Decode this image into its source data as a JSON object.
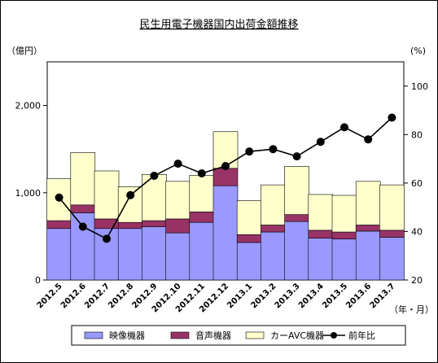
{
  "chart_data": {
    "type": "bar",
    "title": "民生用電子機器国内出荷金額推移",
    "y_left_unit": "（億円）",
    "y_right_unit": "(%)",
    "x_unit": "（年・月）",
    "ylim_left": [
      0,
      2500
    ],
    "yticks_left": [
      "0",
      "1,000",
      "2,000"
    ],
    "yticks_left_values": [
      0,
      1000,
      2000
    ],
    "ylim_right": [
      20,
      110
    ],
    "yticks_right": [
      "20",
      "40",
      "60",
      "80",
      "100"
    ],
    "yticks_right_values": [
      20,
      40,
      60,
      80,
      100
    ],
    "categories": [
      "2012.5",
      "2012.6",
      "2012.7",
      "2012.8",
      "2012.9",
      "2012.10",
      "2012.11",
      "2012.12",
      "2013.1",
      "2013.2",
      "2013.3",
      "2013.4",
      "2013.5",
      "2013.6",
      "2013.7"
    ],
    "series": [
      {
        "name": "映像機器",
        "kind": "stack",
        "color": "#9999ff",
        "values": [
          590,
          770,
          590,
          590,
          610,
          540,
          660,
          1080,
          430,
          550,
          670,
          480,
          470,
          560,
          490
        ]
      },
      {
        "name": "音声機器",
        "kind": "stack",
        "color": "#993366",
        "values": [
          90,
          90,
          110,
          70,
          70,
          160,
          120,
          200,
          90,
          80,
          80,
          90,
          80,
          70,
          80
        ]
      },
      {
        "name": "カーAVC機器",
        "kind": "stack",
        "color": "#ffffcc",
        "values": [
          480,
          600,
          550,
          410,
          530,
          430,
          420,
          420,
          390,
          460,
          550,
          410,
          420,
          500,
          520
        ]
      },
      {
        "name": "前年比",
        "kind": "line",
        "axis": "right",
        "color": "#000000",
        "values": [
          54,
          42,
          37,
          55,
          63,
          68,
          64,
          67,
          73,
          74,
          71,
          77,
          83,
          78,
          87
        ]
      }
    ],
    "legend_position": "bottom",
    "grid": false
  }
}
